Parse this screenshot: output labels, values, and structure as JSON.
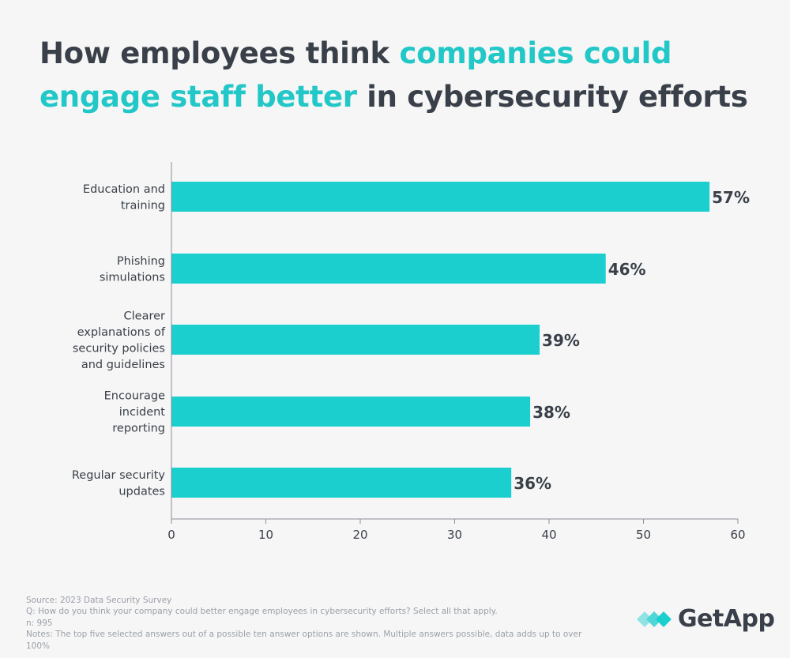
{
  "title": {
    "part1": "How employees think ",
    "highlight1": "companies could",
    "highlight2": "engage staff better",
    "part2": " in cybersecurity efforts"
  },
  "colors": {
    "bar": "#1ccfcf",
    "accent": "#22c7c7",
    "text": "#3a4049",
    "muted": "#9aa0a8"
  },
  "chart_data": {
    "type": "bar",
    "orientation": "horizontal",
    "categories": [
      [
        "Education and",
        "training"
      ],
      [
        "Phishing",
        "simulations"
      ],
      [
        "Clearer",
        "explanations of",
        "security policies",
        "and guidelines"
      ],
      [
        "Encourage",
        "incident",
        "reporting"
      ],
      [
        "Regular security",
        "updates"
      ]
    ],
    "values": [
      57,
      46,
      39,
      38,
      36
    ],
    "value_labels": [
      "57%",
      "46%",
      "39%",
      "38%",
      "36%"
    ],
    "xlim": [
      0,
      60
    ],
    "xticks": [
      0,
      10,
      20,
      30,
      40,
      50,
      60
    ],
    "xlabel": "",
    "ylabel": "",
    "grid": false
  },
  "footer": {
    "source": "Source: 2023 Data Security Survey",
    "question": "Q: How do you think your company could better engage employees in cybersecurity efforts? Select all that apply.",
    "n": "n: 995",
    "notes": "Notes: The top five selected answers out of a possible ten answer options are shown. Multiple answers possible, data adds up to over 100%"
  },
  "brand": {
    "name": "GetApp",
    "icon": "getapp-logo-icon"
  }
}
